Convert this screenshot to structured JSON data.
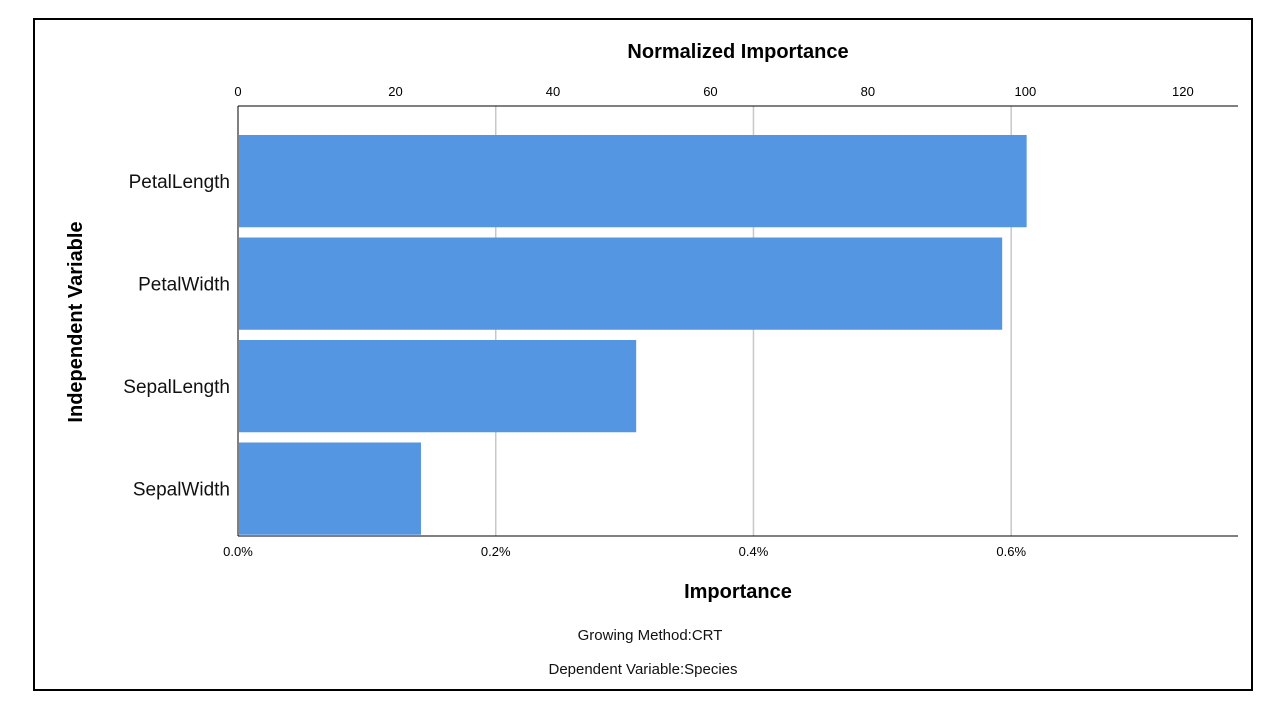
{
  "chart_data": {
    "type": "bar",
    "orientation": "horizontal",
    "categories": [
      "PetalLength",
      "PetalWidth",
      "SepalLength",
      "SepalWidth"
    ],
    "values": [
      0.612,
      0.593,
      0.309,
      0.142
    ],
    "normalized_values": [
      100,
      97,
      50.5,
      23.3
    ],
    "bottom_axis": {
      "title": "Importance",
      "ticks": [
        0,
        0.2,
        0.4,
        0.6
      ],
      "tick_labels": [
        "0.0%",
        "0.2%",
        "0.4%",
        "0.6%"
      ],
      "range": [
        0,
        0.776
      ]
    },
    "top_axis": {
      "title": "Normalized Importance",
      "ticks": [
        0,
        20,
        40,
        60,
        80,
        100,
        120
      ],
      "tick_labels": [
        "0",
        "20",
        "40",
        "60",
        "80",
        "100",
        "120"
      ],
      "range": [
        0,
        127
      ]
    },
    "ylabel": "Independent Variable",
    "grid": true,
    "legend": "none",
    "bar_color": "#5596e2",
    "grid_color": "#c8c8c8"
  },
  "footnotes": {
    "growing_method": "Growing Method:CRT",
    "dependent_variable": "Dependent Variable:Species"
  }
}
